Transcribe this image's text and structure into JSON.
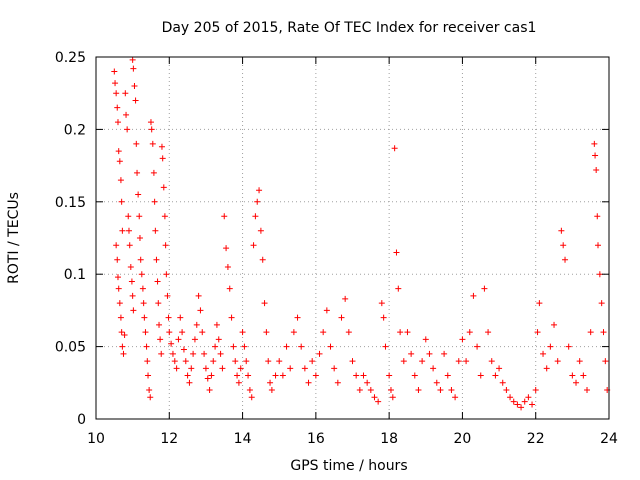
{
  "chart_data": {
    "type": "scatter",
    "title": "Day 205 of 2015, Rate Of TEC Index for receiver cas1",
    "xlabel": "GPS time / hours",
    "ylabel": "ROTI / TECUs",
    "xlim": [
      10,
      24
    ],
    "ylim": [
      0,
      0.25
    ],
    "xticks": [
      10,
      12,
      14,
      16,
      18,
      20,
      22,
      24
    ],
    "xtick_labels": [
      "10",
      "12",
      "14",
      "16",
      "18",
      "20",
      "22",
      "24"
    ],
    "yticks": [
      0,
      0.05,
      0.1,
      0.15,
      0.2,
      0.25
    ],
    "ytick_labels": [
      "0",
      "0.05",
      "0.1",
      "0.15",
      "0.2",
      "0.25"
    ],
    "grid": true,
    "marker": "+",
    "color": "#ff0000",
    "series": [
      {
        "name": "ROTI",
        "points": [
          [
            10.5,
            0.24
          ],
          [
            10.52,
            0.232
          ],
          [
            10.55,
            0.225
          ],
          [
            10.58,
            0.215
          ],
          [
            10.6,
            0.205
          ],
          [
            10.62,
            0.185
          ],
          [
            10.65,
            0.178
          ],
          [
            10.68,
            0.165
          ],
          [
            10.7,
            0.15
          ],
          [
            10.72,
            0.13
          ],
          [
            10.55,
            0.12
          ],
          [
            10.58,
            0.11
          ],
          [
            10.6,
            0.098
          ],
          [
            10.62,
            0.09
          ],
          [
            10.65,
            0.08
          ],
          [
            10.68,
            0.07
          ],
          [
            10.7,
            0.06
          ],
          [
            10.72,
            0.05
          ],
          [
            10.75,
            0.045
          ],
          [
            10.78,
            0.058
          ],
          [
            10.8,
            0.225
          ],
          [
            10.82,
            0.21
          ],
          [
            10.85,
            0.2
          ],
          [
            10.88,
            0.14
          ],
          [
            10.9,
            0.13
          ],
          [
            10.92,
            0.12
          ],
          [
            10.95,
            0.105
          ],
          [
            10.98,
            0.095
          ],
          [
            11.0,
            0.085
          ],
          [
            11.02,
            0.075
          ],
          [
            11.0,
            0.248
          ],
          [
            11.02,
            0.242
          ],
          [
            11.05,
            0.23
          ],
          [
            11.08,
            0.22
          ],
          [
            11.1,
            0.19
          ],
          [
            11.12,
            0.17
          ],
          [
            11.15,
            0.155
          ],
          [
            11.18,
            0.14
          ],
          [
            11.2,
            0.125
          ],
          [
            11.22,
            0.11
          ],
          [
            11.25,
            0.1
          ],
          [
            11.28,
            0.09
          ],
          [
            11.3,
            0.08
          ],
          [
            11.32,
            0.07
          ],
          [
            11.35,
            0.06
          ],
          [
            11.38,
            0.05
          ],
          [
            11.4,
            0.04
          ],
          [
            11.42,
            0.03
          ],
          [
            11.45,
            0.02
          ],
          [
            11.48,
            0.015
          ],
          [
            11.5,
            0.205
          ],
          [
            11.52,
            0.2
          ],
          [
            11.55,
            0.19
          ],
          [
            11.58,
            0.17
          ],
          [
            11.6,
            0.15
          ],
          [
            11.62,
            0.13
          ],
          [
            11.65,
            0.11
          ],
          [
            11.68,
            0.095
          ],
          [
            11.7,
            0.08
          ],
          [
            11.72,
            0.065
          ],
          [
            11.75,
            0.055
          ],
          [
            11.78,
            0.045
          ],
          [
            11.8,
            0.188
          ],
          [
            11.82,
            0.18
          ],
          [
            11.85,
            0.16
          ],
          [
            11.88,
            0.14
          ],
          [
            11.9,
            0.12
          ],
          [
            11.92,
            0.1
          ],
          [
            11.95,
            0.085
          ],
          [
            11.98,
            0.07
          ],
          [
            12.0,
            0.06
          ],
          [
            12.05,
            0.052
          ],
          [
            12.1,
            0.045
          ],
          [
            12.15,
            0.04
          ],
          [
            12.2,
            0.035
          ],
          [
            12.25,
            0.055
          ],
          [
            12.3,
            0.07
          ],
          [
            12.35,
            0.06
          ],
          [
            12.4,
            0.048
          ],
          [
            12.45,
            0.04
          ],
          [
            12.5,
            0.03
          ],
          [
            12.55,
            0.025
          ],
          [
            12.6,
            0.035
          ],
          [
            12.65,
            0.045
          ],
          [
            12.7,
            0.055
          ],
          [
            12.75,
            0.065
          ],
          [
            12.8,
            0.085
          ],
          [
            12.85,
            0.075
          ],
          [
            12.9,
            0.06
          ],
          [
            12.95,
            0.045
          ],
          [
            13.0,
            0.035
          ],
          [
            13.05,
            0.028
          ],
          [
            13.1,
            0.02
          ],
          [
            13.15,
            0.03
          ],
          [
            13.2,
            0.04
          ],
          [
            13.25,
            0.05
          ],
          [
            13.3,
            0.065
          ],
          [
            13.35,
            0.055
          ],
          [
            13.4,
            0.045
          ],
          [
            13.45,
            0.035
          ],
          [
            13.5,
            0.14
          ],
          [
            13.55,
            0.118
          ],
          [
            13.6,
            0.105
          ],
          [
            13.65,
            0.09
          ],
          [
            13.7,
            0.07
          ],
          [
            13.75,
            0.05
          ],
          [
            13.8,
            0.04
          ],
          [
            13.85,
            0.03
          ],
          [
            13.9,
            0.025
          ],
          [
            13.95,
            0.035
          ],
          [
            14.0,
            0.06
          ],
          [
            14.05,
            0.05
          ],
          [
            14.1,
            0.04
          ],
          [
            14.15,
            0.03
          ],
          [
            14.2,
            0.02
          ],
          [
            14.25,
            0.015
          ],
          [
            14.3,
            0.12
          ],
          [
            14.35,
            0.14
          ],
          [
            14.4,
            0.15
          ],
          [
            14.45,
            0.158
          ],
          [
            14.5,
            0.13
          ],
          [
            14.55,
            0.11
          ],
          [
            14.6,
            0.08
          ],
          [
            14.65,
            0.06
          ],
          [
            14.7,
            0.04
          ],
          [
            14.75,
            0.025
          ],
          [
            14.8,
            0.02
          ],
          [
            14.9,
            0.03
          ],
          [
            15.0,
            0.04
          ],
          [
            15.1,
            0.03
          ],
          [
            15.2,
            0.05
          ],
          [
            15.3,
            0.035
          ],
          [
            15.4,
            0.06
          ],
          [
            15.5,
            0.07
          ],
          [
            15.6,
            0.05
          ],
          [
            15.7,
            0.035
          ],
          [
            15.8,
            0.025
          ],
          [
            15.9,
            0.04
          ],
          [
            16.0,
            0.03
          ],
          [
            16.1,
            0.045
          ],
          [
            16.2,
            0.06
          ],
          [
            16.3,
            0.075
          ],
          [
            16.4,
            0.05
          ],
          [
            16.5,
            0.035
          ],
          [
            16.6,
            0.025
          ],
          [
            16.7,
            0.07
          ],
          [
            16.8,
            0.083
          ],
          [
            16.9,
            0.06
          ],
          [
            17.0,
            0.04
          ],
          [
            17.1,
            0.03
          ],
          [
            17.2,
            0.02
          ],
          [
            17.3,
            0.03
          ],
          [
            17.4,
            0.025
          ],
          [
            17.5,
            0.02
          ],
          [
            17.6,
            0.015
          ],
          [
            17.7,
            0.012
          ],
          [
            17.8,
            0.08
          ],
          [
            17.85,
            0.07
          ],
          [
            17.9,
            0.05
          ],
          [
            18.0,
            0.03
          ],
          [
            18.05,
            0.02
          ],
          [
            18.1,
            0.015
          ],
          [
            18.15,
            0.187
          ],
          [
            18.2,
            0.115
          ],
          [
            18.25,
            0.09
          ],
          [
            18.3,
            0.06
          ],
          [
            18.4,
            0.04
          ],
          [
            18.5,
            0.06
          ],
          [
            18.6,
            0.045
          ],
          [
            18.7,
            0.03
          ],
          [
            18.8,
            0.02
          ],
          [
            18.9,
            0.04
          ],
          [
            19.0,
            0.055
          ],
          [
            19.1,
            0.045
          ],
          [
            19.2,
            0.035
          ],
          [
            19.3,
            0.025
          ],
          [
            19.4,
            0.02
          ],
          [
            19.5,
            0.045
          ],
          [
            19.6,
            0.03
          ],
          [
            19.7,
            0.02
          ],
          [
            19.8,
            0.015
          ],
          [
            19.9,
            0.04
          ],
          [
            20.0,
            0.055
          ],
          [
            20.1,
            0.04
          ],
          [
            20.2,
            0.06
          ],
          [
            20.3,
            0.085
          ],
          [
            20.4,
            0.05
          ],
          [
            20.5,
            0.03
          ],
          [
            20.6,
            0.09
          ],
          [
            20.7,
            0.06
          ],
          [
            20.8,
            0.04
          ],
          [
            20.9,
            0.03
          ],
          [
            21.0,
            0.035
          ],
          [
            21.1,
            0.025
          ],
          [
            21.2,
            0.02
          ],
          [
            21.3,
            0.015
          ],
          [
            21.4,
            0.012
          ],
          [
            21.5,
            0.01
          ],
          [
            21.6,
            0.008
          ],
          [
            21.7,
            0.012
          ],
          [
            21.8,
            0.015
          ],
          [
            21.9,
            0.01
          ],
          [
            22.0,
            0.02
          ],
          [
            22.05,
            0.06
          ],
          [
            22.1,
            0.08
          ],
          [
            22.2,
            0.045
          ],
          [
            22.3,
            0.035
          ],
          [
            22.4,
            0.05
          ],
          [
            22.5,
            0.065
          ],
          [
            22.6,
            0.04
          ],
          [
            22.7,
            0.13
          ],
          [
            22.75,
            0.12
          ],
          [
            22.8,
            0.11
          ],
          [
            22.9,
            0.05
          ],
          [
            23.0,
            0.03
          ],
          [
            23.1,
            0.025
          ],
          [
            23.2,
            0.04
          ],
          [
            23.3,
            0.03
          ],
          [
            23.4,
            0.02
          ],
          [
            23.5,
            0.06
          ],
          [
            23.6,
            0.19
          ],
          [
            23.62,
            0.182
          ],
          [
            23.65,
            0.172
          ],
          [
            23.68,
            0.14
          ],
          [
            23.7,
            0.12
          ],
          [
            23.75,
            0.1
          ],
          [
            23.8,
            0.08
          ],
          [
            23.85,
            0.06
          ],
          [
            23.9,
            0.04
          ],
          [
            23.95,
            0.02
          ]
        ]
      }
    ]
  }
}
